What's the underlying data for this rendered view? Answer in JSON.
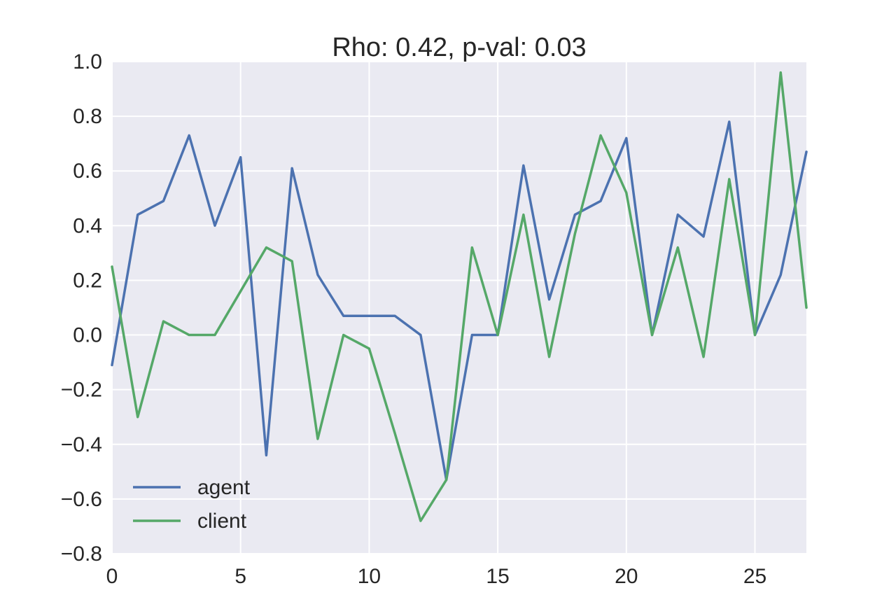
{
  "chart_data": {
    "type": "line",
    "title": "Rho: 0.42, p-val: 0.03",
    "xlabel": "",
    "ylabel": "",
    "xlim": [
      0,
      27
    ],
    "ylim": [
      -0.8,
      1.0
    ],
    "xticks": [
      "0",
      "5",
      "10",
      "15",
      "20",
      "25"
    ],
    "xtick_values": [
      0,
      5,
      10,
      15,
      20,
      25
    ],
    "yticks": [
      "1.0",
      "0.8",
      "0.6",
      "0.4",
      "0.2",
      "0.0",
      "−0.2",
      "−0.4",
      "−0.6",
      "−0.8"
    ],
    "ytick_values": [
      1.0,
      0.8,
      0.6,
      0.4,
      0.2,
      0.0,
      -0.2,
      -0.4,
      -0.6,
      -0.8
    ],
    "grid": true,
    "legend_position": "lower-left",
    "background_color": "#eaeaf2",
    "x": [
      0,
      1,
      2,
      3,
      4,
      5,
      6,
      7,
      8,
      9,
      10,
      11,
      12,
      13,
      14,
      15,
      16,
      17,
      18,
      19,
      20,
      21,
      22,
      23,
      24,
      25,
      26,
      27
    ],
    "series": [
      {
        "name": "agent",
        "color": "#4c72b0",
        "values": [
          -0.11,
          0.44,
          0.49,
          0.73,
          0.4,
          0.65,
          -0.44,
          0.61,
          0.22,
          0.07,
          0.07,
          0.07,
          0.0,
          -0.53,
          0.0,
          0.0,
          0.62,
          0.13,
          0.44,
          0.49,
          0.72,
          0.0,
          0.44,
          0.36,
          0.78,
          0.0,
          0.22,
          0.67
        ]
      },
      {
        "name": "client",
        "color": "#55a868",
        "values": [
          0.25,
          -0.3,
          0.05,
          0.0,
          0.0,
          0.16,
          0.32,
          0.27,
          -0.38,
          0.0,
          -0.05,
          -0.36,
          -0.68,
          -0.53,
          0.32,
          0.0,
          0.44,
          -0.08,
          0.37,
          0.73,
          0.52,
          0.0,
          0.32,
          -0.08,
          0.57,
          0.0,
          0.96,
          0.1
        ]
      }
    ]
  }
}
